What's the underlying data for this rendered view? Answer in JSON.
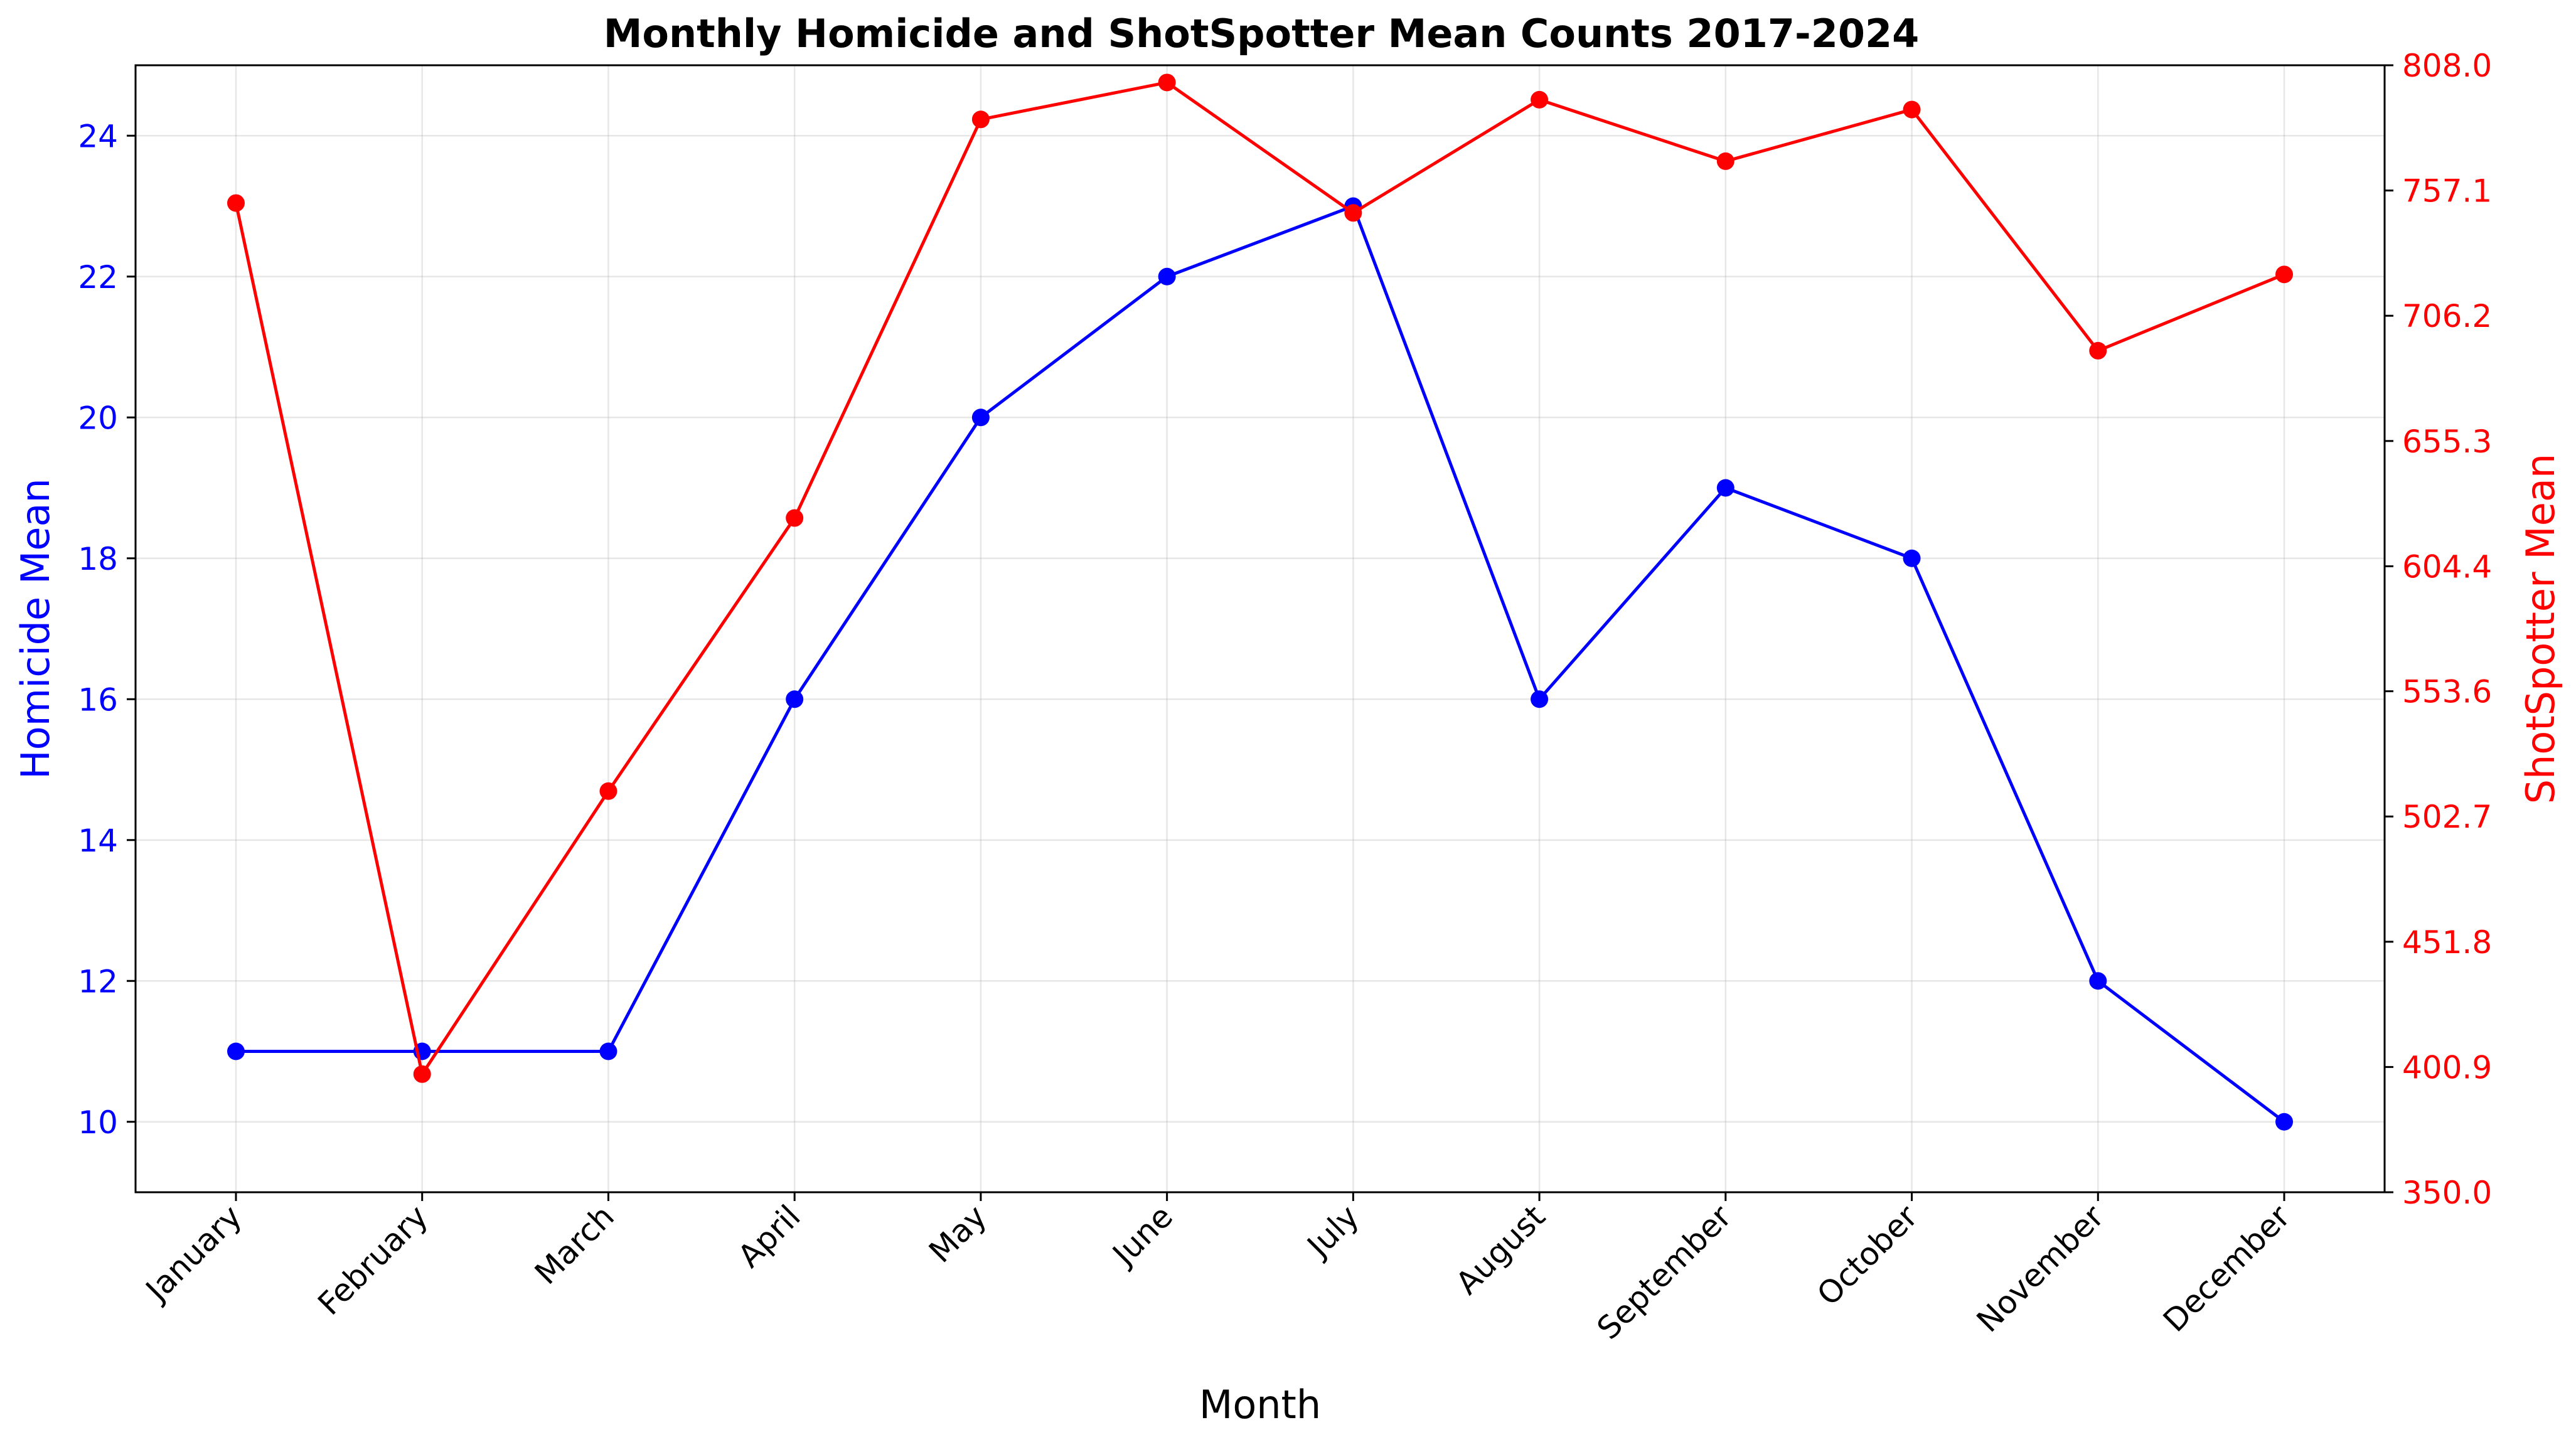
{
  "chart_data": {
    "type": "line",
    "title": "Monthly Homicide and ShotSpotter Mean Counts 2017-2024",
    "xlabel": "Month",
    "categories": [
      "January",
      "February",
      "March",
      "April",
      "May",
      "June",
      "July",
      "August",
      "September",
      "October",
      "November",
      "December"
    ],
    "grid": true,
    "left_axis": {
      "label": "Homicide Mean",
      "color": "#0000ff",
      "range": [
        9,
        25
      ],
      "ticks": [
        "10",
        "12",
        "14",
        "16",
        "18",
        "20",
        "22",
        "24"
      ]
    },
    "right_axis": {
      "label": "ShotSpotter Mean",
      "color": "#ff0000",
      "range": [
        350.0,
        808.0
      ],
      "ticks": [
        "350.0",
        "400.9",
        "451.8",
        "502.7",
        "553.6",
        "604.4",
        "655.3",
        "706.2",
        "757.1",
        "808.0"
      ]
    },
    "series": [
      {
        "axis": "left",
        "color": "#0000ff",
        "values": [
          11,
          11,
          11,
          16,
          20,
          22,
          23,
          16,
          19,
          18,
          12,
          10
        ]
      },
      {
        "axis": "right",
        "color": "#ff0000",
        "values": [
          752,
          398,
          513,
          624,
          786,
          801,
          748,
          794,
          769,
          790,
          692,
          723
        ]
      }
    ]
  }
}
